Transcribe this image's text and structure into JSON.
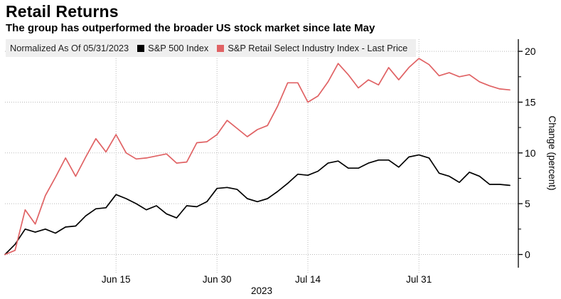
{
  "header": {
    "title": "Retail Returns",
    "subtitle": "The group has outperformed the broader US stock market since late May"
  },
  "legend": {
    "note": "Normalized As Of 05/31/2023"
  },
  "chart_data": {
    "type": "line",
    "title": "Retail Returns",
    "subtitle": "The group has outperformed the broader US stock market since late May",
    "normalized_as_of": "05/31/2023",
    "ylabel": "Change (percent)",
    "year_label": "2023",
    "grid": "dotted",
    "legend_position": "top",
    "ylim": [
      -1.3,
      21.2
    ],
    "y_ticks": [
      {
        "value": 0,
        "label": "0"
      },
      {
        "value": 5,
        "label": "5"
      },
      {
        "value": 10,
        "label": "10"
      },
      {
        "value": 15,
        "label": "15"
      },
      {
        "value": 20,
        "label": "20"
      }
    ],
    "y_minor_ticks": [
      2.5,
      7.5,
      12.5,
      17.5
    ],
    "x_ticks": [
      {
        "label": "Jun 15",
        "index": 11
      },
      {
        "label": "Jun 30",
        "index": 21
      },
      {
        "label": "Jul 14",
        "index": 30
      },
      {
        "label": "Jul 31",
        "index": 41
      }
    ],
    "x_dates": [
      "05/31",
      "06/01",
      "06/02",
      "06/05",
      "06/06",
      "06/07",
      "06/08",
      "06/09",
      "06/12",
      "06/13",
      "06/14",
      "06/15",
      "06/16",
      "06/20",
      "06/21",
      "06/22",
      "06/23",
      "06/26",
      "06/27",
      "06/28",
      "06/29",
      "06/30",
      "07/03",
      "07/05",
      "07/06",
      "07/07",
      "07/10",
      "07/11",
      "07/12",
      "07/13",
      "07/14",
      "07/17",
      "07/18",
      "07/19",
      "07/20",
      "07/21",
      "07/24",
      "07/25",
      "07/26",
      "07/27",
      "07/28",
      "07/31",
      "08/01",
      "08/02",
      "08/03",
      "08/04",
      "08/07",
      "08/08",
      "08/09",
      "08/10",
      "08/11"
    ],
    "series": [
      {
        "name": "S&P 500 Index",
        "color": "#000000",
        "values": [
          0,
          1.0,
          2.5,
          2.2,
          2.5,
          2.1,
          2.7,
          2.8,
          3.8,
          4.5,
          4.6,
          5.9,
          5.5,
          5.0,
          4.4,
          4.8,
          4.0,
          3.6,
          4.8,
          4.7,
          5.2,
          6.5,
          6.6,
          6.4,
          5.5,
          5.2,
          5.5,
          6.2,
          7.0,
          7.9,
          7.8,
          8.2,
          9.0,
          9.2,
          8.5,
          8.5,
          9.0,
          9.3,
          9.3,
          8.6,
          9.6,
          9.8,
          9.5,
          8.0,
          7.7,
          7.1,
          8.1,
          7.7,
          6.9,
          6.9,
          6.8
        ]
      },
      {
        "name": "S&P Retail Select Industry Index - Last Price",
        "color": "#e06264",
        "values": [
          0,
          0.4,
          4.4,
          3.0,
          5.8,
          7.6,
          9.5,
          7.7,
          9.6,
          11.4,
          10.1,
          11.8,
          10.0,
          9.4,
          9.5,
          9.7,
          9.9,
          9.0,
          9.1,
          11.0,
          11.1,
          11.8,
          13.2,
          12.4,
          11.6,
          12.3,
          12.7,
          14.6,
          16.9,
          16.9,
          15.0,
          15.6,
          17.0,
          18.8,
          17.7,
          16.4,
          17.2,
          16.7,
          18.4,
          17.2,
          18.4,
          19.3,
          18.7,
          17.6,
          17.9,
          17.5,
          17.7,
          17.0,
          16.6,
          16.3,
          16.2
        ]
      }
    ]
  }
}
